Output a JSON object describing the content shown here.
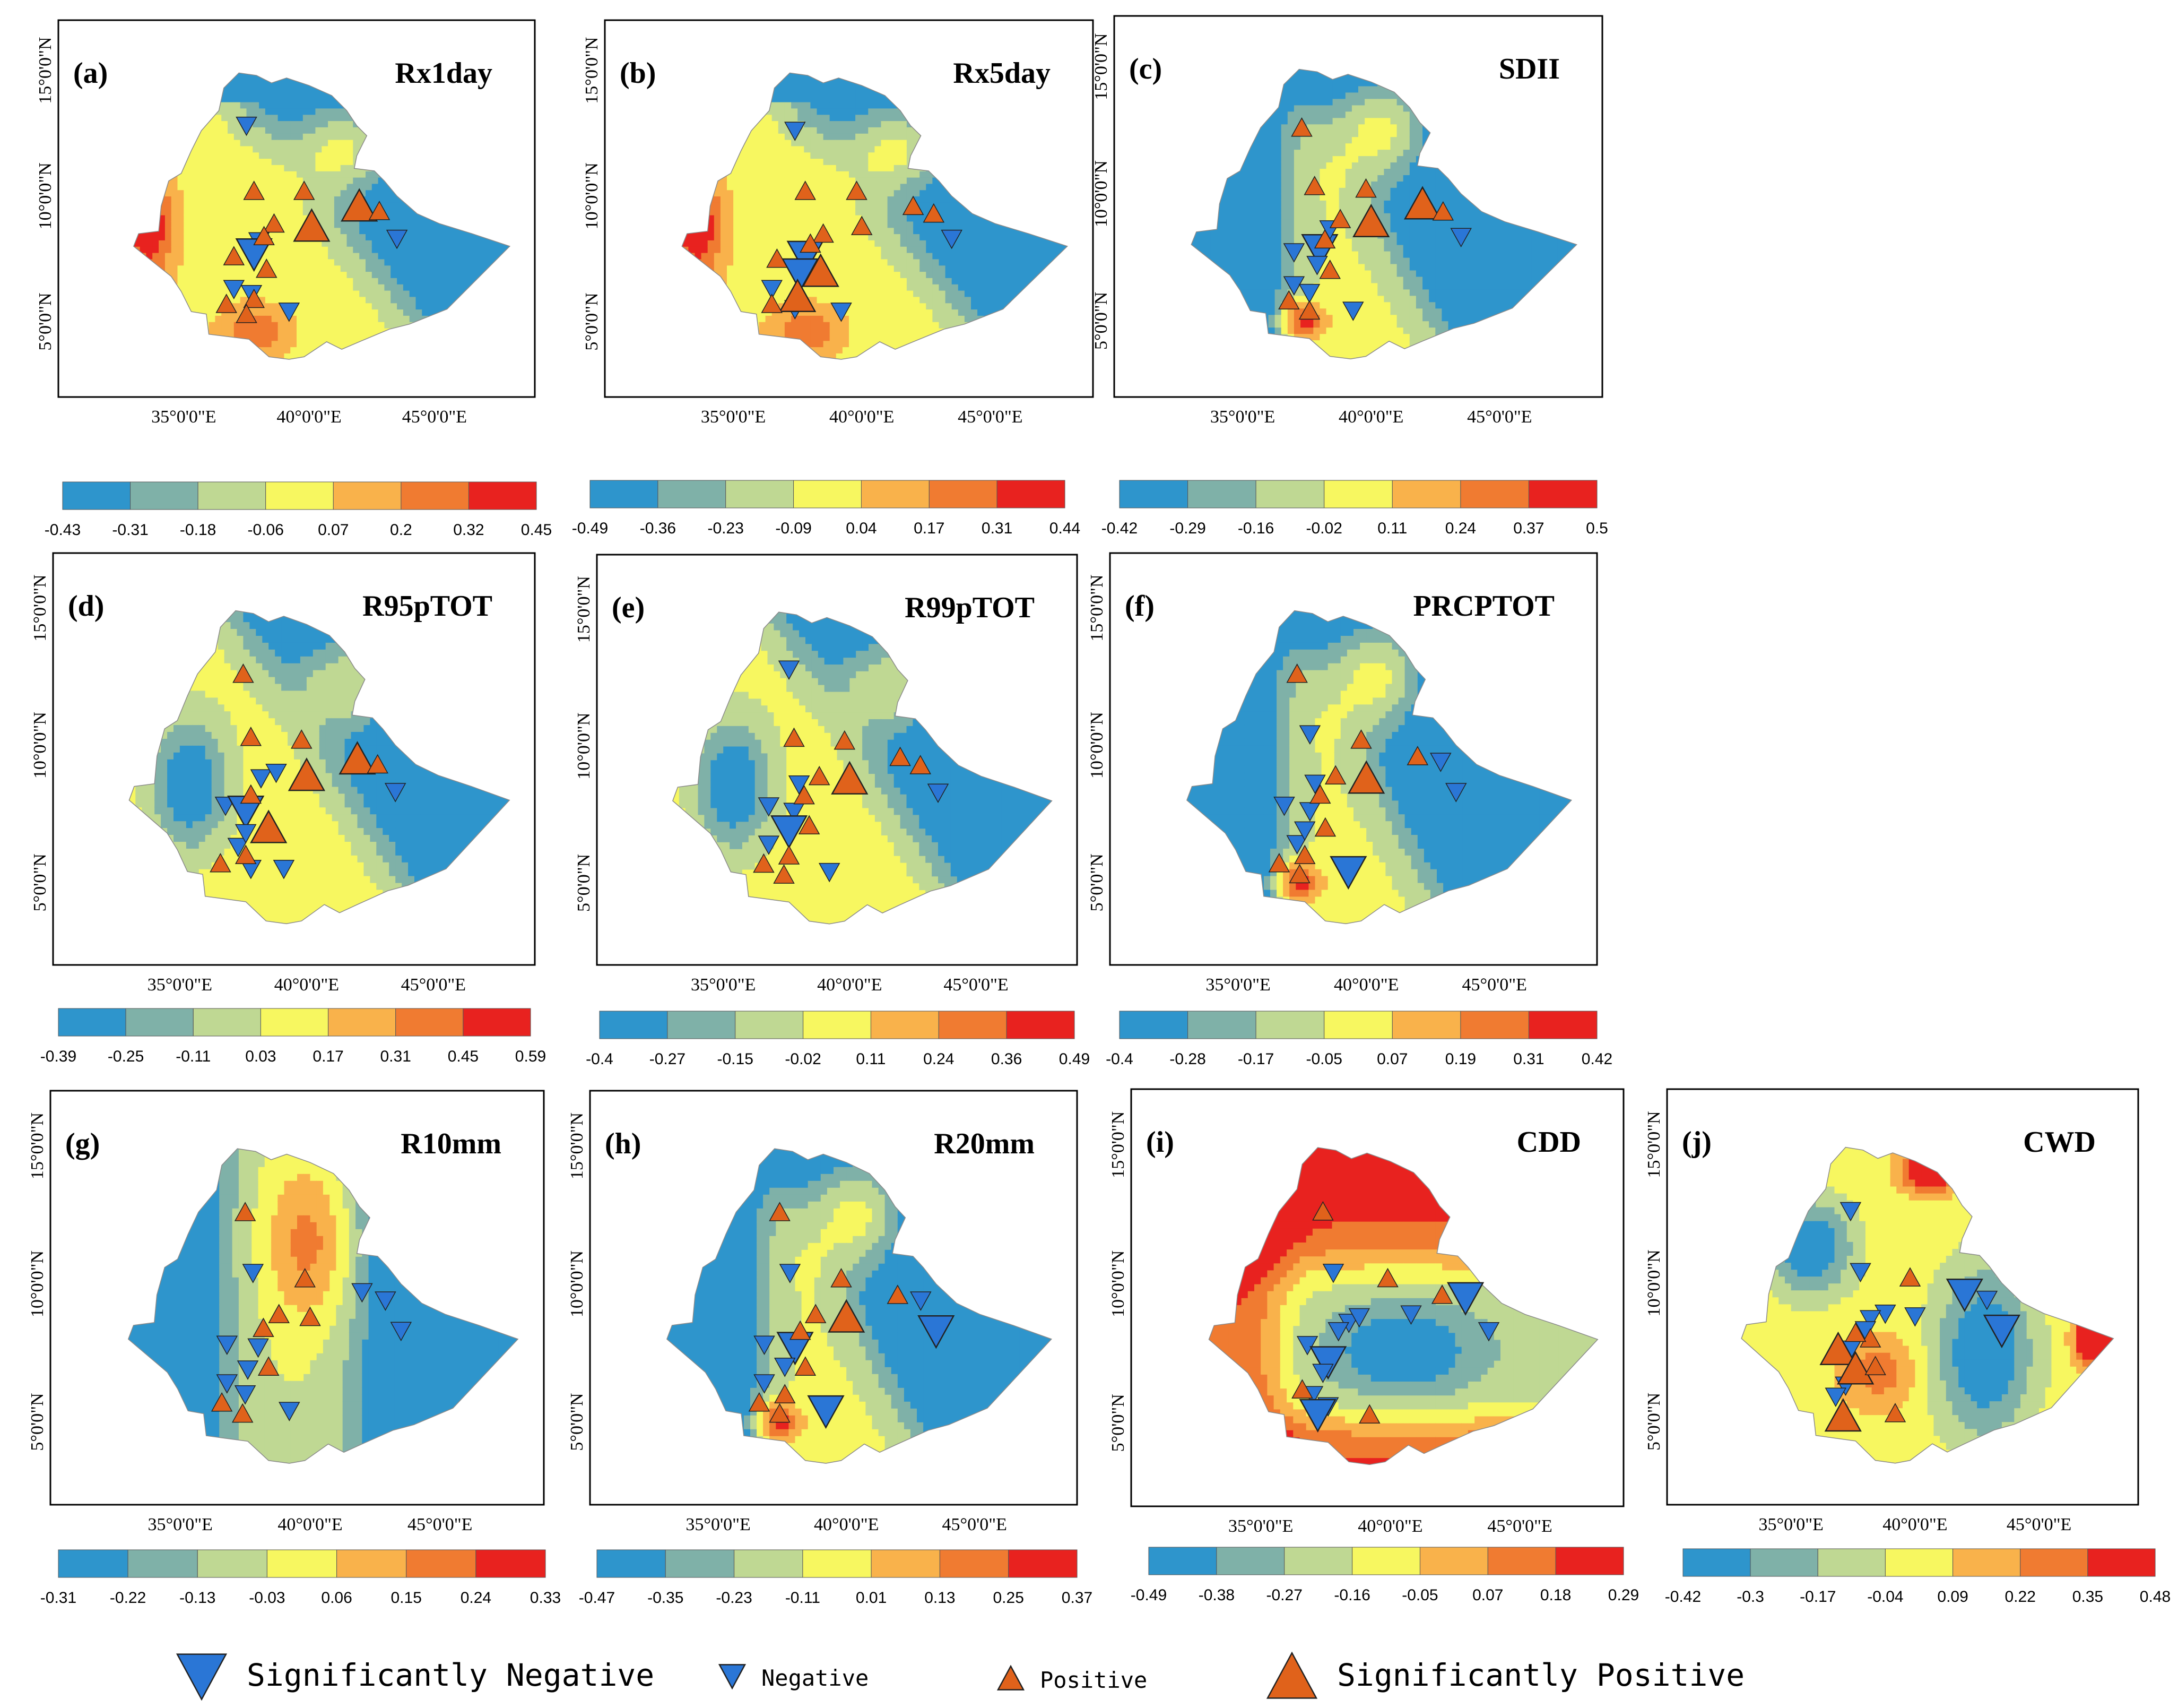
{
  "colors": {
    "bins": [
      "#2e95cc",
      "#7fb1a8",
      "#bfd893",
      "#f7f760",
      "#f9b24b",
      "#f07b31",
      "#e8221f"
    ],
    "neg": "#2a76d6",
    "pos": "#e0621b"
  },
  "axis_labels": {
    "lon": [
      "35°0'0\"E",
      "40°0'0\"E",
      "45°0'0\"E"
    ],
    "lat": [
      "15°0'0\"N",
      "10°0'0\"N",
      "5°0'0\"N"
    ]
  },
  "panels": [
    {
      "id": "a",
      "label": "(a)",
      "title": "Rx1day",
      "colorbar": [
        "-0.43",
        "-0.31",
        "-0.18",
        "-0.06",
        "0.07",
        "0.2",
        "0.32",
        "0.45"
      ],
      "pattern": "ne_hot",
      "markers": [
        [
          "n",
          37.5,
          12.8,
          0
        ],
        [
          "n",
          43.5,
          8.3,
          0
        ],
        [
          "n",
          38.0,
          8.2,
          0
        ],
        [
          "n",
          37.8,
          7.7,
          1
        ],
        [
          "n",
          37.0,
          6.3,
          0
        ],
        [
          "n",
          37.7,
          6.1,
          0
        ],
        [
          "n",
          39.2,
          5.4,
          0
        ],
        [
          "p",
          37.8,
          10.2,
          0
        ],
        [
          "p",
          39.8,
          10.2,
          0
        ],
        [
          "p",
          38.6,
          8.9,
          0
        ],
        [
          "p",
          38.2,
          8.4,
          0
        ],
        [
          "p",
          37.0,
          7.6,
          0
        ],
        [
          "p",
          38.3,
          7.1,
          0
        ],
        [
          "p",
          37.8,
          5.9,
          0
        ],
        [
          "p",
          36.7,
          5.7,
          0
        ],
        [
          "p",
          37.5,
          5.3,
          0
        ],
        [
          "p",
          40.1,
          8.8,
          1
        ],
        [
          "p",
          42.0,
          9.6,
          1
        ],
        [
          "p",
          42.8,
          9.4,
          0
        ]
      ]
    },
    {
      "id": "b",
      "label": "(b)",
      "title": "Rx5day",
      "colorbar": [
        "-0.49",
        "-0.36",
        "-0.23",
        "-0.09",
        "0.04",
        "0.17",
        "0.31",
        "0.44"
      ],
      "pattern": "ne_hot",
      "markers": [
        [
          "n",
          37.4,
          12.6,
          0
        ],
        [
          "n",
          43.5,
          8.3,
          0
        ],
        [
          "n",
          37.8,
          7.6,
          1
        ],
        [
          "n",
          37.6,
          6.9,
          1
        ],
        [
          "n",
          37.4,
          5.5,
          0
        ],
        [
          "n",
          39.2,
          5.4,
          0
        ],
        [
          "n",
          36.5,
          6.3,
          0
        ],
        [
          "p",
          37.8,
          10.2,
          0
        ],
        [
          "p",
          39.8,
          10.2,
          0
        ],
        [
          "p",
          38.5,
          8.5,
          0
        ],
        [
          "p",
          38.0,
          8.1,
          0
        ],
        [
          "p",
          36.7,
          7.5,
          0
        ],
        [
          "p",
          38.4,
          7.0,
          1
        ],
        [
          "p",
          37.5,
          6.0,
          1
        ],
        [
          "p",
          36.5,
          5.7,
          0
        ],
        [
          "p",
          40.0,
          8.8,
          0
        ],
        [
          "p",
          42.0,
          9.6,
          0
        ],
        [
          "p",
          42.8,
          9.3,
          0
        ]
      ]
    },
    {
      "id": "c",
      "label": "(c)",
      "title": "SDII",
      "colorbar": [
        "-0.42",
        "-0.29",
        "-0.16",
        "-0.02",
        "0.11",
        "0.24",
        "0.37",
        "0.5"
      ],
      "pattern": "ne_strong",
      "markers": [
        [
          "n",
          43.5,
          8.3,
          0
        ],
        [
          "n",
          37.0,
          7.7,
          0
        ],
        [
          "n",
          38.0,
          7.8,
          1
        ],
        [
          "n",
          38.4,
          8.6,
          0
        ],
        [
          "n",
          37.9,
          7.2,
          0
        ],
        [
          "n",
          37.0,
          6.4,
          0
        ],
        [
          "n",
          37.6,
          6.1,
          0
        ],
        [
          "n",
          39.3,
          5.4,
          0
        ],
        [
          "p",
          37.3,
          12.6,
          0
        ],
        [
          "p",
          37.8,
          10.3,
          0
        ],
        [
          "p",
          39.8,
          10.2,
          0
        ],
        [
          "p",
          38.8,
          9.0,
          0
        ],
        [
          "p",
          38.2,
          8.2,
          0
        ],
        [
          "p",
          38.4,
          7.0,
          0
        ],
        [
          "p",
          36.8,
          5.8,
          0
        ],
        [
          "p",
          37.6,
          5.4,
          0
        ],
        [
          "p",
          40.0,
          8.9,
          1
        ],
        [
          "p",
          42.0,
          9.6,
          1
        ],
        [
          "p",
          42.8,
          9.3,
          0
        ]
      ]
    },
    {
      "id": "d",
      "label": "(d)",
      "title": "R95pTOT",
      "colorbar": [
        "-0.39",
        "-0.25",
        "-0.11",
        "0.03",
        "0.17",
        "0.31",
        "0.45",
        "0.59"
      ],
      "pattern": "ne_hot_w",
      "markers": [
        [
          "n",
          43.5,
          8.3,
          0
        ],
        [
          "n",
          36.8,
          7.8,
          0
        ],
        [
          "n",
          37.6,
          7.6,
          1
        ],
        [
          "n",
          38.2,
          8.8,
          0
        ],
        [
          "n",
          38.8,
          9.0,
          0
        ],
        [
          "n",
          37.3,
          6.3,
          0
        ],
        [
          "n",
          37.8,
          5.5,
          0
        ],
        [
          "n",
          39.1,
          5.5,
          0
        ],
        [
          "n",
          37.6,
          6.8,
          0
        ],
        [
          "p",
          37.5,
          12.6,
          0
        ],
        [
          "p",
          37.8,
          10.3,
          0
        ],
        [
          "p",
          39.8,
          10.2,
          0
        ],
        [
          "p",
          37.8,
          8.2,
          0
        ],
        [
          "p",
          38.5,
          7.0,
          1
        ],
        [
          "p",
          37.6,
          6.0,
          0
        ],
        [
          "p",
          36.6,
          5.7,
          0
        ],
        [
          "p",
          40.0,
          8.9,
          1
        ],
        [
          "p",
          42.0,
          9.5,
          1
        ],
        [
          "p",
          42.8,
          9.3,
          0
        ]
      ]
    },
    {
      "id": "e",
      "label": "(e)",
      "title": "R99pTOT",
      "colorbar": [
        "-0.4",
        "-0.27",
        "-0.15",
        "-0.02",
        "0.11",
        "0.24",
        "0.36",
        "0.49"
      ],
      "pattern": "ne_hot_w",
      "markers": [
        [
          "n",
          37.6,
          12.8,
          0
        ],
        [
          "n",
          43.5,
          8.3,
          0
        ],
        [
          "n",
          36.8,
          7.8,
          0
        ],
        [
          "n",
          38.0,
          8.6,
          0
        ],
        [
          "n",
          37.8,
          7.6,
          0
        ],
        [
          "n",
          37.6,
          6.9,
          1
        ],
        [
          "n",
          36.8,
          6.4,
          0
        ],
        [
          "n",
          39.2,
          5.4,
          0
        ],
        [
          "p",
          37.8,
          10.3,
          0
        ],
        [
          "p",
          39.8,
          10.2,
          0
        ],
        [
          "p",
          38.8,
          8.9,
          0
        ],
        [
          "p",
          38.2,
          8.2,
          0
        ],
        [
          "p",
          38.4,
          7.1,
          0
        ],
        [
          "p",
          37.6,
          6.0,
          0
        ],
        [
          "p",
          36.6,
          5.7,
          0
        ],
        [
          "p",
          37.4,
          5.3,
          0
        ],
        [
          "p",
          40.0,
          8.8,
          1
        ],
        [
          "p",
          42.0,
          9.6,
          0
        ],
        [
          "p",
          42.8,
          9.3,
          0
        ]
      ]
    },
    {
      "id": "f",
      "label": "(f)",
      "title": "PRCPTOT",
      "colorbar": [
        "-0.4",
        "-0.28",
        "-0.17",
        "-0.05",
        "0.07",
        "0.19",
        "0.31",
        "0.42"
      ],
      "pattern": "ne_strong",
      "markers": [
        [
          "n",
          37.8,
          10.4,
          0
        ],
        [
          "n",
          43.5,
          8.3,
          0
        ],
        [
          "n",
          42.9,
          9.4,
          0
        ],
        [
          "n",
          36.8,
          7.8,
          0
        ],
        [
          "n",
          38.0,
          8.6,
          0
        ],
        [
          "n",
          37.8,
          7.6,
          0
        ],
        [
          "n",
          37.3,
          6.4,
          0
        ],
        [
          "n",
          37.6,
          6.9,
          0
        ],
        [
          "n",
          39.3,
          5.4,
          1
        ],
        [
          "p",
          37.3,
          12.6,
          0
        ],
        [
          "p",
          39.8,
          10.2,
          0
        ],
        [
          "p",
          38.8,
          8.9,
          0
        ],
        [
          "p",
          38.2,
          8.2,
          0
        ],
        [
          "p",
          38.4,
          7.0,
          0
        ],
        [
          "p",
          37.6,
          6.0,
          0
        ],
        [
          "p",
          36.6,
          5.7,
          0
        ],
        [
          "p",
          37.4,
          5.3,
          0
        ],
        [
          "p",
          40.0,
          8.8,
          1
        ],
        [
          "p",
          42.0,
          9.6,
          0
        ]
      ]
    },
    {
      "id": "g",
      "label": "(g)",
      "title": "R10mm",
      "colorbar": [
        "-0.31",
        "-0.22",
        "-0.13",
        "-0.03",
        "0.06",
        "0.15",
        "0.24",
        "0.33"
      ],
      "pattern": "central",
      "markers": [
        [
          "n",
          37.8,
          10.4,
          0
        ],
        [
          "n",
          42.0,
          9.7,
          0
        ],
        [
          "n",
          42.9,
          9.4,
          0
        ],
        [
          "n",
          43.5,
          8.3,
          0
        ],
        [
          "n",
          36.8,
          7.8,
          0
        ],
        [
          "n",
          38.0,
          7.7,
          0
        ],
        [
          "n",
          37.6,
          6.9,
          0
        ],
        [
          "n",
          36.8,
          6.4,
          0
        ],
        [
          "n",
          37.5,
          6.0,
          0
        ],
        [
          "n",
          39.2,
          5.4,
          0
        ],
        [
          "p",
          37.5,
          12.6,
          0
        ],
        [
          "p",
          39.8,
          10.2,
          0
        ],
        [
          "p",
          38.8,
          8.9,
          0
        ],
        [
          "p",
          38.2,
          8.4,
          0
        ],
        [
          "p",
          40.0,
          8.8,
          0
        ],
        [
          "p",
          38.4,
          7.0,
          0
        ],
        [
          "p",
          36.6,
          5.7,
          0
        ],
        [
          "p",
          37.4,
          5.3,
          0
        ]
      ]
    },
    {
      "id": "h",
      "label": "(h)",
      "title": "R20mm",
      "colorbar": [
        "-0.47",
        "-0.35",
        "-0.23",
        "-0.11",
        "0.01",
        "0.13",
        "0.25",
        "0.37"
      ],
      "pattern": "ne_strong",
      "markers": [
        [
          "n",
          37.8,
          10.4,
          0
        ],
        [
          "n",
          42.9,
          9.4,
          0
        ],
        [
          "n",
          43.5,
          8.3,
          1
        ],
        [
          "n",
          36.8,
          7.8,
          0
        ],
        [
          "n",
          38.0,
          7.7,
          1
        ],
        [
          "n",
          37.6,
          7.0,
          0
        ],
        [
          "n",
          36.8,
          6.4,
          0
        ],
        [
          "n",
          39.2,
          5.4,
          1
        ],
        [
          "p",
          37.4,
          12.6,
          0
        ],
        [
          "p",
          39.8,
          10.2,
          0
        ],
        [
          "p",
          38.8,
          8.9,
          0
        ],
        [
          "p",
          38.2,
          8.3,
          0
        ],
        [
          "p",
          40.0,
          8.8,
          1
        ],
        [
          "p",
          42.0,
          9.6,
          0
        ],
        [
          "p",
          38.4,
          7.0,
          0
        ],
        [
          "p",
          37.6,
          6.0,
          0
        ],
        [
          "p",
          36.6,
          5.7,
          0
        ],
        [
          "p",
          37.4,
          5.3,
          0
        ]
      ]
    },
    {
      "id": "i",
      "label": "(i)",
      "title": "CDD",
      "colorbar": [
        "-0.49",
        "-0.38",
        "-0.27",
        "-0.16",
        "-0.05",
        "0.07",
        "0.18",
        "0.29"
      ],
      "pattern": "cdd",
      "markers": [
        [
          "n",
          37.8,
          10.4,
          0
        ],
        [
          "n",
          42.9,
          9.5,
          1
        ],
        [
          "n",
          43.8,
          8.3,
          0
        ],
        [
          "n",
          40.8,
          8.9,
          0
        ],
        [
          "n",
          36.8,
          7.8,
          0
        ],
        [
          "n",
          38.4,
          8.6,
          0
        ],
        [
          "n",
          38.8,
          8.8,
          0
        ],
        [
          "n",
          38.0,
          8.3,
          0
        ],
        [
          "n",
          37.6,
          7.2,
          1
        ],
        [
          "n",
          37.4,
          6.8,
          0
        ],
        [
          "n",
          37.0,
          6.0,
          0
        ],
        [
          "n",
          37.6,
          5.6,
          0
        ],
        [
          "n",
          37.2,
          5.3,
          1
        ],
        [
          "p",
          37.4,
          12.6,
          0
        ],
        [
          "p",
          39.9,
          10.2,
          0
        ],
        [
          "p",
          42.0,
          9.6,
          0
        ],
        [
          "p",
          36.6,
          6.2,
          0
        ],
        [
          "p",
          39.2,
          5.3,
          0
        ]
      ]
    },
    {
      "id": "j",
      "label": "(j)",
      "title": "CWD",
      "colorbar": [
        "-0.42",
        "-0.3",
        "-0.17",
        "-0.04",
        "0.09",
        "0.22",
        "0.35",
        "0.48"
      ],
      "pattern": "cwd",
      "markers": [
        [
          "n",
          37.4,
          12.6,
          0
        ],
        [
          "n",
          37.8,
          10.4,
          0
        ],
        [
          "n",
          42.0,
          9.6,
          1
        ],
        [
          "n",
          42.9,
          9.4,
          0
        ],
        [
          "n",
          43.5,
          8.3,
          1
        ],
        [
          "n",
          38.8,
          8.9,
          0
        ],
        [
          "n",
          40.0,
          8.8,
          0
        ],
        [
          "n",
          38.2,
          8.7,
          0
        ],
        [
          "n",
          38.0,
          8.3,
          0
        ],
        [
          "n",
          37.4,
          7.6,
          0
        ],
        [
          "n",
          37.2,
          6.3,
          0
        ],
        [
          "n",
          36.8,
          5.9,
          0
        ],
        [
          "p",
          39.8,
          10.2,
          0
        ],
        [
          "p",
          36.9,
          7.6,
          1
        ],
        [
          "p",
          37.6,
          6.9,
          1
        ],
        [
          "p",
          38.4,
          7.0,
          0
        ],
        [
          "p",
          38.2,
          8.0,
          0
        ],
        [
          "p",
          37.6,
          8.2,
          0
        ],
        [
          "p",
          37.1,
          5.2,
          1
        ],
        [
          "p",
          39.2,
          5.3,
          0
        ]
      ]
    }
  ],
  "legend": [
    {
      "kind": "n",
      "big": true,
      "label": "Significantly Negative"
    },
    {
      "kind": "n",
      "big": false,
      "label": "Negative"
    },
    {
      "kind": "p",
      "big": false,
      "label": "Positive"
    },
    {
      "kind": "p",
      "big": true,
      "label": "Significantly Positive"
    }
  ]
}
